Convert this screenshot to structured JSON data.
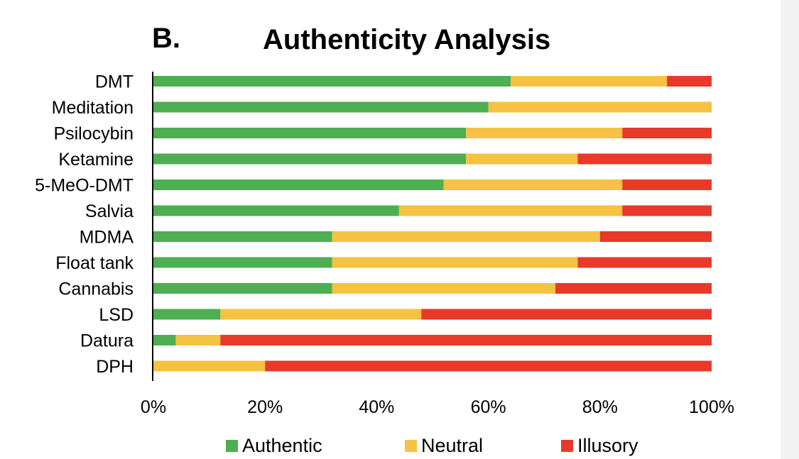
{
  "chart_data": {
    "type": "bar",
    "orientation": "horizontal",
    "stacked": true,
    "panel_label": "B.",
    "title": "Authenticity Analysis",
    "xlabel": "",
    "ylabel": "",
    "xlim": [
      0,
      100
    ],
    "x_ticks": [
      "0%",
      "20%",
      "40%",
      "60%",
      "80%",
      "100%"
    ],
    "grid": false,
    "legend_position": "bottom",
    "categories": [
      "DMT",
      "Meditation",
      "Psilocybin",
      "Ketamine",
      "5-MeO-DMT",
      "Salvia",
      "MDMA",
      "Float tank",
      "Cannabis",
      "LSD",
      "Datura",
      "DPH"
    ],
    "series": [
      {
        "name": "Authentic",
        "color": "#4daf51",
        "values": [
          64,
          60,
          56,
          56,
          52,
          44,
          32,
          32,
          32,
          12,
          4,
          0
        ]
      },
      {
        "name": "Neutral",
        "color": "#f5c242",
        "values": [
          28,
          40,
          28,
          20,
          32,
          40,
          48,
          44,
          40,
          36,
          8,
          20
        ]
      },
      {
        "name": "Illusory",
        "color": "#e8392a",
        "values": [
          8,
          0,
          16,
          24,
          16,
          16,
          20,
          24,
          28,
          52,
          88,
          80
        ]
      }
    ]
  }
}
